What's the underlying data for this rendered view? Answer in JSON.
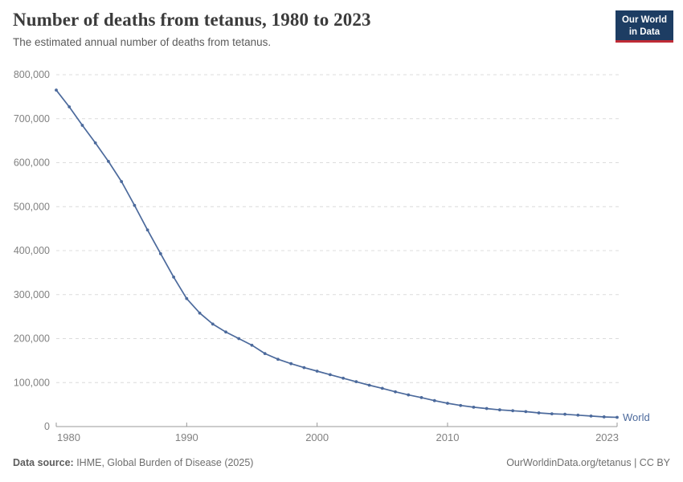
{
  "header": {
    "title": "Number of deaths from tetanus, 1980 to 2023",
    "subtitle": "The estimated annual number of deaths from tetanus.",
    "logo": {
      "line1": "Our World",
      "line2": "in Data"
    }
  },
  "chart_data": {
    "type": "line",
    "title": "Number of deaths from tetanus, 1980 to 2023",
    "xlabel": "",
    "ylabel": "",
    "x": [
      1980,
      1981,
      1982,
      1983,
      1984,
      1985,
      1986,
      1987,
      1988,
      1989,
      1990,
      1991,
      1992,
      1993,
      1994,
      1995,
      1996,
      1997,
      1998,
      1999,
      2000,
      2001,
      2002,
      2003,
      2004,
      2005,
      2006,
      2007,
      2008,
      2009,
      2010,
      2011,
      2012,
      2013,
      2014,
      2015,
      2016,
      2017,
      2018,
      2019,
      2020,
      2021,
      2022,
      2023
    ],
    "series": [
      {
        "name": "World",
        "color": "#4c6a9c",
        "values": [
          765000,
          727000,
          685000,
          645000,
          603000,
          557000,
          503000,
          447000,
          393000,
          340000,
          291000,
          258000,
          233000,
          215000,
          200000,
          185000,
          166000,
          153000,
          143000,
          134000,
          126000,
          118000,
          110000,
          102000,
          94000,
          87000,
          79000,
          72000,
          66000,
          59000,
          53000,
          48000,
          44000,
          41000,
          38000,
          36000,
          34000,
          31000,
          29000,
          28000,
          26000,
          24000,
          22000,
          21000
        ]
      }
    ],
    "xlim": [
      1980,
      2023
    ],
    "ylim": [
      0,
      800000
    ],
    "x_ticks": [
      1980,
      1990,
      2000,
      2010,
      2023
    ],
    "y_ticks": [
      0,
      100000,
      200000,
      300000,
      400000,
      500000,
      600000,
      700000,
      800000
    ],
    "y_tick_labels": [
      "0",
      "100,000",
      "200,000",
      "300,000",
      "400,000",
      "500,000",
      "600,000",
      "700,000",
      "800,000"
    ],
    "grid": "horizontal-dashed",
    "legend_position": "end-of-line",
    "end_label": "World"
  },
  "footer": {
    "source_label": "Data source:",
    "source_text": " IHME, Global Burden of Disease (2025)",
    "credit": "OurWorldinData.org/tetanus | CC BY"
  },
  "colors": {
    "line": "#4c6a9c",
    "grid": "#dcdcdc",
    "axis": "#999999",
    "tick_text": "#818181",
    "logo_bg": "#1d3d63",
    "logo_stripe": "#bf2b36"
  }
}
